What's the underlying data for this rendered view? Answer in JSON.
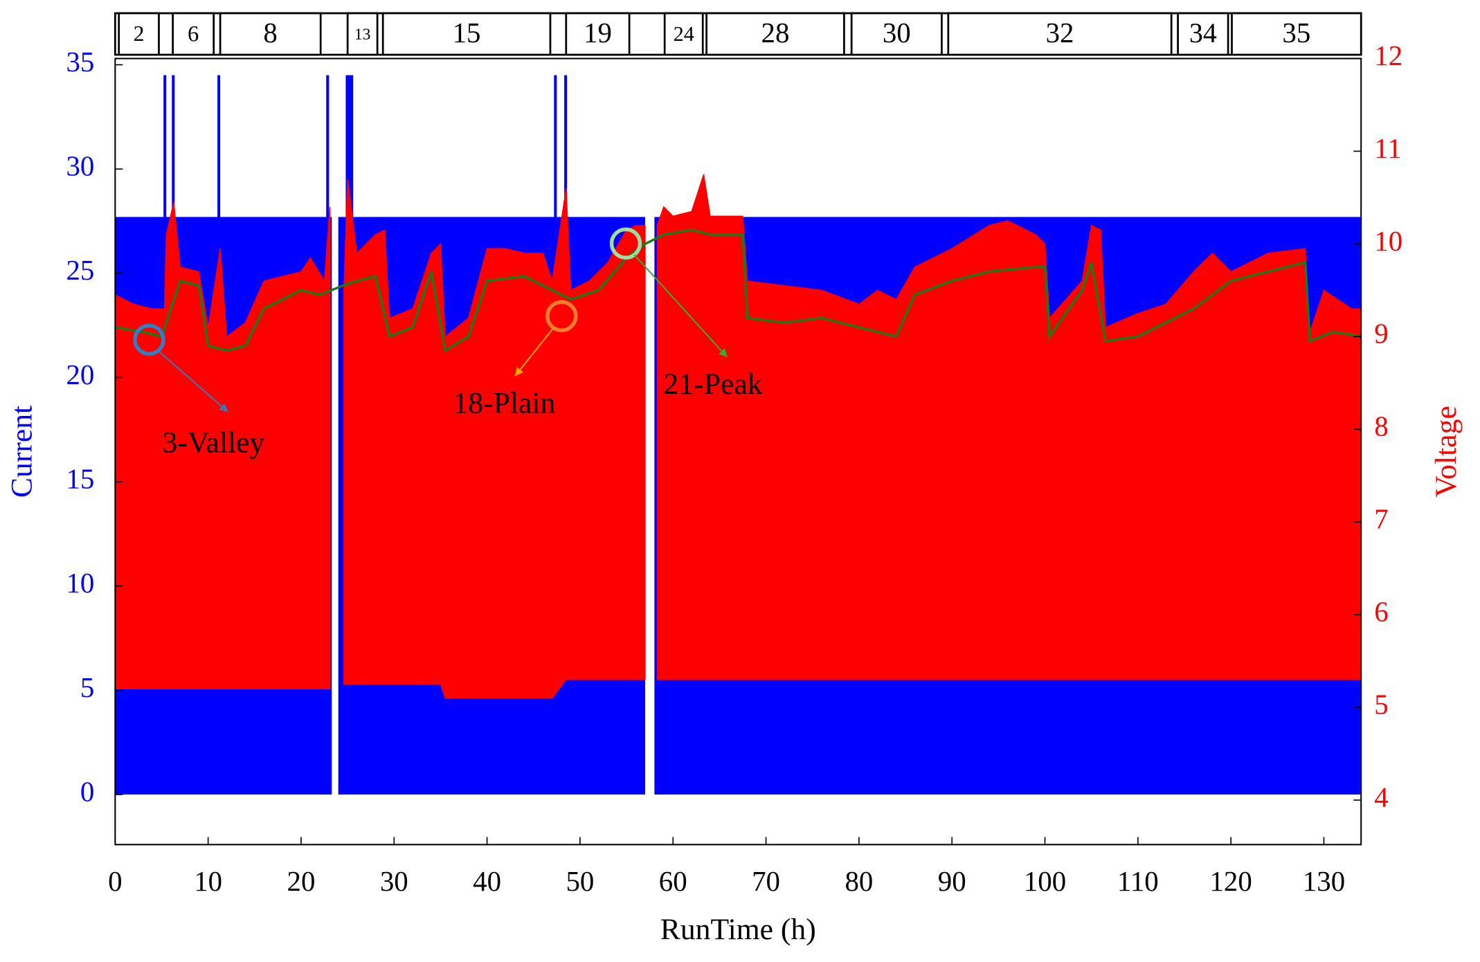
{
  "chart_data": {
    "type": "band",
    "xlabel": "RunTime (h)",
    "ylabel": "Current",
    "y2label": "Voltage",
    "xlim": [
      0,
      134
    ],
    "xticks": [
      0,
      10,
      20,
      30,
      40,
      50,
      60,
      70,
      80,
      90,
      100,
      110,
      120,
      130
    ],
    "ylim": [
      -2.4,
      35.3
    ],
    "yticks": [
      0,
      5,
      10,
      15,
      20,
      25,
      30,
      35
    ],
    "y2lim": [
      3.52,
      12
    ],
    "y2ticks": [
      4,
      5,
      6,
      7,
      8,
      9,
      10,
      11,
      12
    ],
    "segments": {
      "labels": [
        "2",
        "6",
        "8",
        "13",
        "15",
        "19",
        "24",
        "28",
        "30",
        "32",
        "34",
        "35"
      ],
      "start": [
        0.4,
        6.2,
        11.3,
        25.0,
        28.8,
        48.5,
        59.1,
        63.6,
        79.2,
        89.6,
        114.3,
        120.1
      ],
      "end": [
        4.7,
        10.6,
        22.1,
        28.2,
        46.8,
        55.3,
        63.2,
        78.4,
        88.9,
        113.6,
        119.7,
        134
      ]
    },
    "series": [
      {
        "kind": "area",
        "axis": "y",
        "color": "#0000ff",
        "x": [
          0,
          5.2,
          5.2,
          5.5,
          5.5,
          6.1,
          6.1,
          6.4,
          6.4,
          11.0,
          11.0,
          11.3,
          11.3,
          22.7,
          22.7,
          23.0,
          23.0,
          23.3,
          23.6,
          24.0,
          24.8,
          24.8,
          25.6,
          25.6,
          47.2,
          47.2,
          47.5,
          47.5,
          48.3,
          48.3,
          48.6,
          48.6,
          57.0,
          57.5,
          58.0,
          134
        ],
        "values": [
          27.7,
          27.7,
          34.5,
          34.5,
          27.7,
          27.7,
          34.5,
          34.5,
          27.7,
          27.7,
          34.5,
          34.5,
          27.7,
          27.7,
          34.5,
          34.5,
          27.7,
          27.7,
          null,
          27.7,
          27.7,
          34.5,
          34.5,
          27.7,
          27.7,
          34.5,
          34.5,
          27.7,
          27.7,
          34.5,
          34.5,
          27.7,
          27.7,
          null,
          27.7,
          27.7
        ]
      },
      {
        "kind": "band",
        "axis": "y2",
        "color": "#ff0000",
        "x": [
          0,
          2,
          4,
          5.3,
          5.5,
          6.3,
          7,
          9,
          10,
          11.3,
          12,
          14,
          16,
          18,
          20,
          21,
          22.5,
          23.1,
          23.6,
          24.6,
          25,
          26,
          28,
          29,
          29.5,
          32,
          34,
          35,
          35.5,
          38,
          40,
          42,
          44,
          46,
          47,
          48.5,
          49,
          51,
          53,
          55,
          56,
          57,
          57.5,
          58.3,
          59,
          60,
          62,
          63.3,
          64,
          66,
          67.5,
          68,
          72,
          76,
          80,
          82,
          84,
          86,
          90,
          94,
          96,
          99,
          100,
          100.5,
          104,
          105,
          106,
          106.5,
          110,
          113,
          116,
          118,
          120,
          124,
          128,
          128.5,
          130,
          133,
          134
        ],
        "high": [
          9.45,
          9.35,
          9.3,
          9.3,
          10.1,
          10.45,
          9.75,
          9.7,
          9.1,
          9.95,
          9.0,
          9.15,
          9.6,
          9.65,
          9.7,
          9.85,
          9.6,
          10.4,
          null,
          9.5,
          10.7,
          9.9,
          10.1,
          10.15,
          9.2,
          9.3,
          9.9,
          10.0,
          9.0,
          9.2,
          9.95,
          9.95,
          9.9,
          9.9,
          9.6,
          10.6,
          9.5,
          9.6,
          9.8,
          10.15,
          10.2,
          10.2,
          null,
          10.2,
          10.4,
          10.3,
          10.35,
          10.75,
          10.3,
          10.3,
          10.3,
          9.6,
          9.55,
          9.5,
          9.35,
          9.5,
          9.4,
          9.75,
          9.95,
          10.2,
          10.25,
          10.1,
          10.0,
          9.2,
          9.6,
          10.2,
          10.15,
          9.1,
          9.25,
          9.35,
          9.7,
          9.9,
          9.7,
          9.9,
          9.95,
          9.05,
          9.5,
          9.3,
          9.3
        ],
        "low": [
          5.2,
          5.2,
          5.2,
          5.2,
          5.2,
          5.2,
          5.2,
          5.2,
          5.2,
          5.2,
          5.2,
          5.2,
          5.2,
          5.2,
          5.2,
          5.2,
          5.2,
          5.2,
          null,
          5.25,
          5.25,
          5.25,
          5.25,
          5.25,
          5.25,
          5.25,
          5.25,
          5.25,
          5.1,
          5.1,
          5.1,
          5.1,
          5.1,
          5.1,
          5.1,
          5.3,
          5.3,
          5.3,
          5.3,
          5.3,
          5.3,
          5.3,
          null,
          5.3,
          5.3,
          5.3,
          5.3,
          5.3,
          5.3,
          5.3,
          5.3,
          5.3,
          5.3,
          5.3,
          5.3,
          5.3,
          5.3,
          5.3,
          5.3,
          5.3,
          5.3,
          5.3,
          5.3,
          5.3,
          5.3,
          5.3,
          5.3,
          5.3,
          5.3,
          5.3,
          5.3,
          5.3,
          5.3,
          5.3,
          5.3,
          5.3,
          5.3,
          5.3,
          5.3
        ]
      },
      {
        "kind": "line",
        "axis": "y2",
        "color": "#1a7a1a",
        "x": [
          0,
          3,
          5,
          7,
          9,
          10,
          12,
          14,
          16,
          18,
          20,
          22,
          24.5,
          26,
          28,
          29.5,
          32,
          34,
          35.5,
          38,
          40,
          44,
          47,
          49,
          52,
          55,
          57,
          59,
          62,
          64,
          67.5,
          68,
          72,
          76,
          80,
          84,
          86,
          90,
          94,
          99,
          100,
          100.5,
          104,
          105,
          106.5,
          110,
          116,
          120,
          124,
          128,
          128.5,
          131,
          134
        ],
        "values": [
          9.1,
          9.05,
          9.0,
          9.6,
          9.55,
          8.9,
          8.85,
          8.9,
          9.3,
          9.4,
          9.5,
          9.45,
          9.55,
          9.6,
          9.65,
          9.0,
          9.1,
          9.7,
          8.85,
          9.0,
          9.6,
          9.65,
          9.5,
          9.4,
          9.5,
          9.85,
          10.0,
          10.1,
          10.15,
          10.1,
          10.1,
          9.2,
          9.15,
          9.2,
          9.1,
          9.0,
          9.45,
          9.6,
          9.7,
          9.75,
          9.75,
          9.0,
          9.5,
          9.8,
          8.95,
          9.0,
          9.3,
          9.6,
          9.7,
          9.8,
          8.95,
          9.05,
          9.0
        ]
      }
    ],
    "annotations": [
      {
        "text": "3-Valley"
      },
      {
        "text": "18-Plain"
      },
      {
        "text": "21-Peak"
      }
    ]
  }
}
